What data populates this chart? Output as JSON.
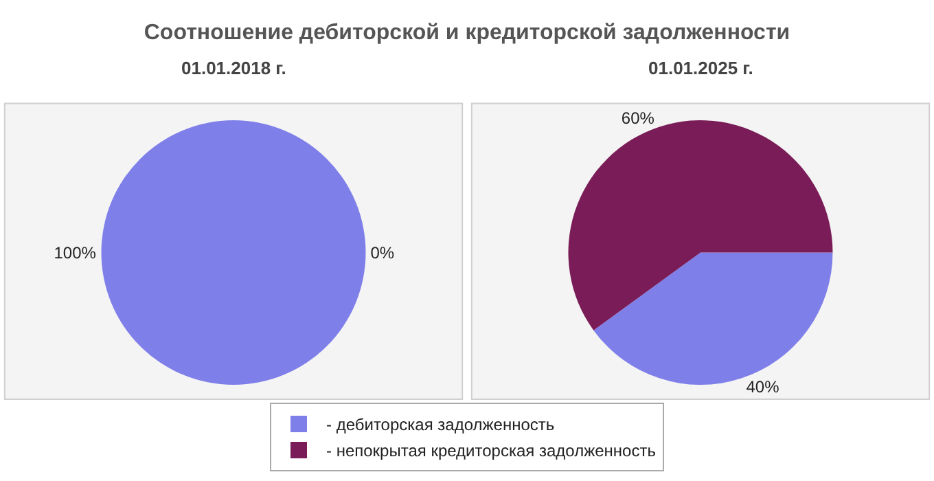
{
  "chart_data": [
    {
      "type": "pie",
      "title": "Соотношение дебиторской и кредиторской задолженности",
      "subtitle": "01.01.2018 г.",
      "categories": [
        "- дебиторская задолженность",
        "- непокрытая кредиторская задолженность"
      ],
      "values": [
        100,
        0
      ],
      "colors": [
        "#7f7fea",
        "#7a1c58"
      ],
      "value_labels": [
        "100%",
        "0%"
      ],
      "legend": "bottom"
    },
    {
      "type": "pie",
      "subtitle": "01.01.2025 г.",
      "categories": [
        null,
        null
      ],
      "values": [
        40,
        60
      ],
      "colors": [
        "#7f7fea",
        "#7a1c58"
      ],
      "value_labels": [
        "40%",
        "60%"
      ],
      "legend": false
    }
  ]
}
